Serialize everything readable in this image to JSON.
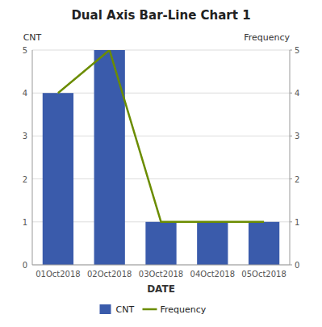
{
  "chart_data": {
    "type": "bar",
    "title": "Dual Axis Bar-Line Chart 1",
    "xlabel": "DATE",
    "ylabel": "CNT",
    "y2label": "Frequency",
    "categories": [
      "01Oct2018",
      "02Oct2018",
      "03Oct2018",
      "04Oct2018",
      "05Oct2018"
    ],
    "series": [
      {
        "name": "CNT",
        "type": "bar",
        "color": "#3a5bab",
        "values": [
          4,
          5,
          1,
          1,
          1
        ]
      },
      {
        "name": "Frequency",
        "type": "line",
        "color": "#6b8c00",
        "values": [
          4,
          5,
          1,
          1,
          1
        ],
        "axis": "y2"
      }
    ],
    "ylim": [
      0,
      5
    ],
    "yticks": [
      0,
      1,
      2,
      3,
      4,
      5
    ],
    "y2lim": [
      0,
      5
    ],
    "y2ticks": [
      0,
      1,
      2,
      3,
      4,
      5
    ],
    "grid": true,
    "legend": "bottom"
  }
}
